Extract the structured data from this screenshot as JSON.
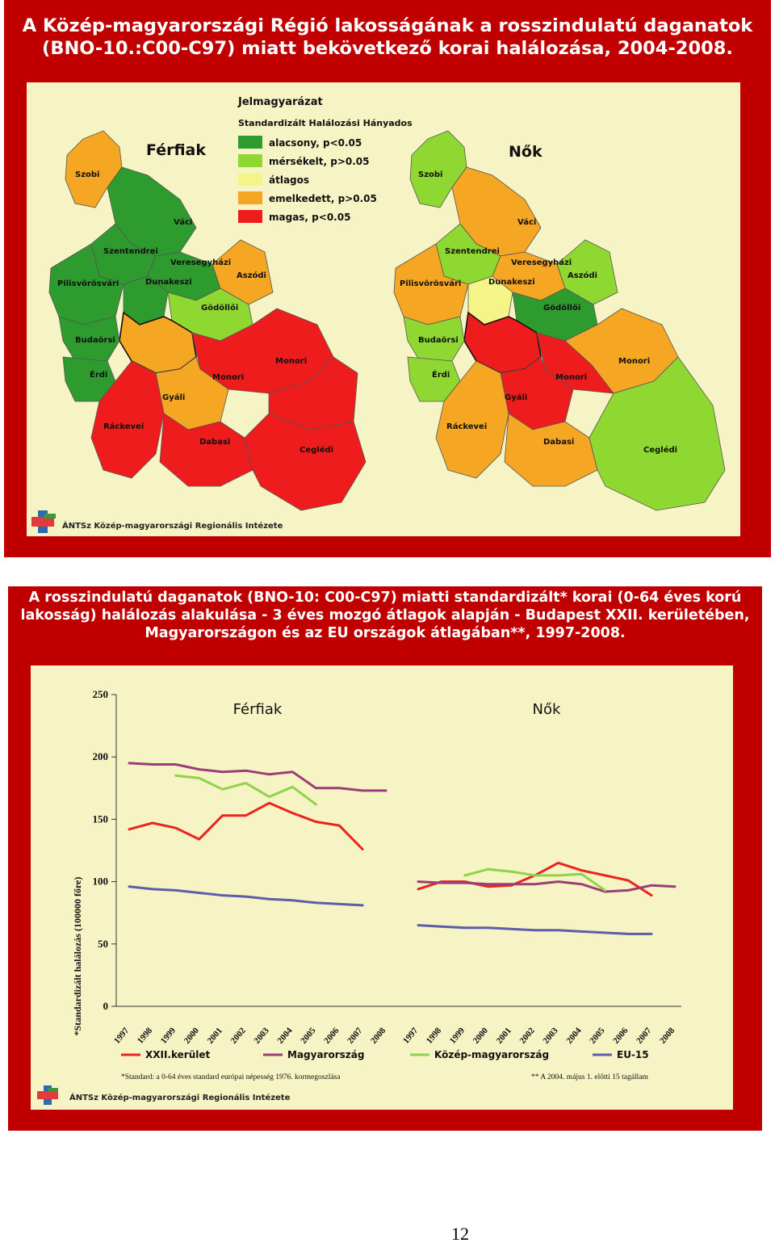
{
  "map_panel": {
    "title_line1": "A Közép-magyarországi Régió lakosságának a rosszindulatú daganatok",
    "title_line2": "(BNO-10.:C00-C97) miatt bekövetkező korai halálozása, 2004-2008.",
    "legend": {
      "title": "Jelmagyarázat",
      "subtitle": "Standardizált Halálozási Hányados",
      "items": [
        {
          "label": "alacsony, p<0.05",
          "color": "#2e9b2e"
        },
        {
          "label": "mérsékelt, p>0.05",
          "color": "#8fd832"
        },
        {
          "label": "átlagos",
          "color": "#f4f488"
        },
        {
          "label": "emelkedett, p>0.05",
          "color": "#f5a623"
        },
        {
          "label": "magas, p<0.05",
          "color": "#ee1c1c"
        }
      ]
    },
    "men": {
      "heading": "Férfiak",
      "districts": [
        "Szobi",
        "Váci",
        "Szentendrei",
        "Veresegyházi",
        "Aszódi",
        "Pilisvörösvári",
        "Dunakeszi",
        "Gödöllői",
        "Budaörsi",
        "Érdi",
        "Monori",
        "Monori",
        "Gyáli",
        "Ráckevei",
        "Dabasi",
        "Ceglédi"
      ]
    },
    "women": {
      "heading": "Nők",
      "districts": [
        "Szobi",
        "Váci",
        "Szentendrei",
        "Veresegyházi",
        "Aszódi",
        "Pilisvörösvári",
        "Dunakeszi",
        "Gödöllői",
        "Budaörsi",
        "Érdi",
        "Monori",
        "Monori",
        "Gyáli",
        "Ráckevei",
        "Dabasi",
        "Ceglédi"
      ]
    },
    "logo_text": "ÁNTSz Közép-magyarországi Regionális Intézete"
  },
  "chart_panel": {
    "title_line1": "A rosszindulatú daganatok (BNO-10: C00-C97) miatti standardizált* korai (0-64 éves korú",
    "title_line2": "lakosság) halálozás alakulása - 3 éves mozgó átlagok alapján - Budapest XXII. kerületében,",
    "title_line3": "Magyarországon és az EU országok átlagában**, 1997-2008.",
    "note_left": "*Standard: a 0-64 éves standard európai népesség 1976. kormegoszlása",
    "note_right": "** A 2004. május 1. előtti 15 tagállam",
    "logo_text": "ÁNTSz Közép-magyarországi Regionális Intézete"
  },
  "chart_data": {
    "type": "line",
    "ylabel": "*Standardizált halálozás (100000 főre)",
    "ylim": [
      0,
      250
    ],
    "yticks": [
      0,
      50,
      100,
      150,
      200,
      250
    ],
    "panels": [
      {
        "name": "Férfiak",
        "x": [
          "1997",
          "1998",
          "1999",
          "2000",
          "2001",
          "2002",
          "2003",
          "2004",
          "2005",
          "2006",
          "2007",
          "2008"
        ],
        "series": [
          {
            "name": "XXII.kerület",
            "color": "#e8251f",
            "values": [
              142,
              147,
              143,
              134,
              153,
              153,
              163,
              155,
              148,
              145,
              126,
              null
            ]
          },
          {
            "name": "Magyarország",
            "color": "#9b3d77",
            "values": [
              195,
              194,
              194,
              190,
              188,
              189,
              186,
              188,
              175,
              175,
              173,
              173
            ]
          },
          {
            "name": "Közép-magyarország",
            "color": "#8fd34a",
            "values": [
              null,
              null,
              185,
              183,
              174,
              179,
              168,
              176,
              162,
              null,
              null,
              null
            ]
          },
          {
            "name": "EU-15",
            "color": "#5b5ea8",
            "values": [
              96,
              94,
              93,
              91,
              89,
              88,
              86,
              85,
              83,
              82,
              81,
              null
            ]
          }
        ]
      },
      {
        "name": "Nők",
        "x": [
          "1997",
          "1998",
          "1999",
          "2000",
          "2001",
          "2002",
          "2003",
          "2004",
          "2005",
          "2006",
          "2007",
          "2008"
        ],
        "series": [
          {
            "name": "XXII.kerület",
            "color": "#e8251f",
            "values": [
              94,
              100,
              100,
              96,
              97,
              105,
              115,
              109,
              105,
              101,
              89,
              null
            ]
          },
          {
            "name": "Magyarország",
            "color": "#9b3d77",
            "values": [
              100,
              99,
              99,
              98,
              98,
              98,
              100,
              98,
              92,
              93,
              97,
              96
            ]
          },
          {
            "name": "Közép-magyarország",
            "color": "#8fd34a",
            "values": [
              null,
              null,
              105,
              110,
              108,
              105,
              105,
              106,
              93,
              null,
              null,
              null
            ]
          },
          {
            "name": "EU-15",
            "color": "#5b5ea8",
            "values": [
              65,
              64,
              63,
              63,
              62,
              61,
              61,
              60,
              59,
              58,
              58,
              null
            ]
          }
        ]
      }
    ]
  },
  "page_number": "12"
}
